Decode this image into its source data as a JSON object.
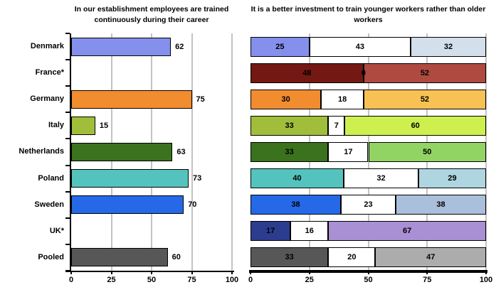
{
  "left_chart": {
    "title": "In our establishment employees are trained continuously during their career"
  },
  "right_chart": {
    "title": "It is a better investment to train younger workers rather than older workers"
  },
  "chart_data": [
    {
      "type": "bar",
      "orientation": "horizontal",
      "title": "In our establishment employees are trained continuously during their career",
      "categories": [
        "Denmark",
        "France*",
        "Germany",
        "Italy",
        "Netherlands",
        "Poland",
        "Sweden",
        "UK*",
        "Pooled"
      ],
      "values": [
        62,
        null,
        75,
        15,
        63,
        73,
        70,
        null,
        60
      ],
      "bar_colors": [
        "#8490EC",
        null,
        "#F18C2F",
        "#A0BE3A",
        "#3A721E",
        "#54C3BE",
        "#2569E8",
        null,
        "#575757"
      ],
      "xlim": [
        0,
        100
      ],
      "xticks": [
        0,
        25,
        50,
        75,
        100
      ],
      "grid": true,
      "value_labels": "outside-end"
    },
    {
      "type": "bar",
      "orientation": "horizontal",
      "stacked": true,
      "title": "It is a better investment to train younger workers rather than older workers",
      "categories": [
        "Denmark",
        "France*",
        "Germany",
        "Italy",
        "Netherlands",
        "Poland",
        "Sweden",
        "UK*",
        "Pooled"
      ],
      "series": [
        {
          "name": "segment-1",
          "values": [
            25,
            48,
            30,
            33,
            33,
            40,
            38,
            17,
            33
          ]
        },
        {
          "name": "segment-2",
          "values": [
            43,
            0,
            18,
            7,
            17,
            32,
            23,
            16,
            20
          ]
        },
        {
          "name": "segment-3",
          "values": [
            32,
            52,
            52,
            60,
            50,
            29,
            38,
            67,
            47
          ]
        }
      ],
      "row_colors": [
        [
          "#8490EC",
          "#FFFFFF",
          "#D3DFEA"
        ],
        [
          "#731812",
          "#FFFFFF",
          "#AE4A3F"
        ],
        [
          "#F18C2F",
          "#FFFFFF",
          "#F8C153"
        ],
        [
          "#A0BE3A",
          "#FFFFFF",
          "#CDF04F"
        ],
        [
          "#3A721E",
          "#FFFFFF",
          "#92D464"
        ],
        [
          "#54C3BE",
          "#FFFFFF",
          "#AFD5E0"
        ],
        [
          "#2569E8",
          "#FFFFFF",
          "#AABFDC"
        ],
        [
          "#2C3D8F",
          "#FFFFFF",
          "#A98FD3"
        ],
        [
          "#575757",
          "#FFFFFF",
          "#ACACAC"
        ]
      ],
      "xlim": [
        0,
        100
      ],
      "xticks": [
        0,
        25,
        50,
        75,
        100
      ],
      "grid": true,
      "value_labels": "center"
    }
  ],
  "style": {
    "gridline_color": "#C3C3C3",
    "axis_color": "#000000",
    "text_color": "#000000",
    "background": "#FFFFFF"
  }
}
